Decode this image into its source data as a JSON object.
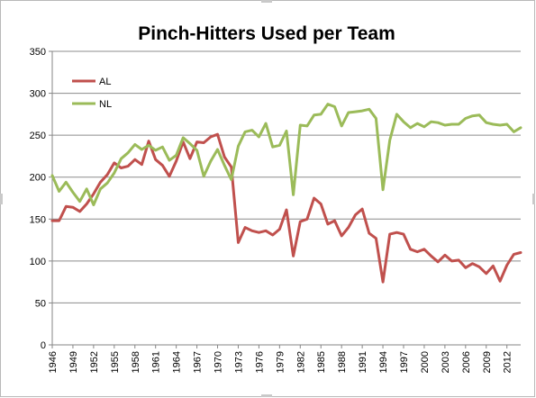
{
  "chart_data": {
    "type": "line",
    "title": "Pinch-Hitters Used per Team",
    "xlabel": "",
    "ylabel": "",
    "ylim": [
      0,
      350
    ],
    "yticks": [
      0,
      50,
      100,
      150,
      200,
      250,
      300,
      350
    ],
    "xlim": [
      1946,
      2014
    ],
    "xtick_labels": [
      "1946",
      "1949",
      "1952",
      "1955",
      "1958",
      "1961",
      "1964",
      "1967",
      "1970",
      "1973",
      "1976",
      "1979",
      "1982",
      "1985",
      "1988",
      "1991",
      "1994",
      "1997",
      "2000",
      "2003",
      "2006",
      "2009",
      "2012"
    ],
    "grid": "horizontal",
    "legend_position": "top-left",
    "series": [
      {
        "name": "AL",
        "color": "#c0504d",
        "x": [
          1946,
          1947,
          1948,
          1949,
          1950,
          1951,
          1952,
          1953,
          1954,
          1955,
          1956,
          1957,
          1958,
          1959,
          1960,
          1961,
          1962,
          1963,
          1964,
          1965,
          1966,
          1967,
          1968,
          1969,
          1970,
          1971,
          1972,
          1973,
          1974,
          1975,
          1976,
          1977,
          1978,
          1979,
          1980,
          1981,
          1982,
          1983,
          1984,
          1985,
          1986,
          1987,
          1988,
          1989,
          1990,
          1991,
          1992,
          1993,
          1994,
          1995,
          1996,
          1997,
          1998,
          1999,
          2000,
          2001,
          2002,
          2003,
          2004,
          2005,
          2006,
          2007,
          2008,
          2009,
          2010,
          2011,
          2012,
          2013,
          2014
        ],
        "values": [
          148,
          148,
          165,
          164,
          159,
          168,
          180,
          194,
          203,
          217,
          211,
          213,
          221,
          215,
          243,
          221,
          214,
          201,
          219,
          242,
          222,
          242,
          241,
          248,
          251,
          224,
          212,
          122,
          140,
          136,
          134,
          136,
          131,
          138,
          161,
          106,
          147,
          150,
          175,
          168,
          144,
          148,
          130,
          140,
          155,
          162,
          133,
          127,
          75,
          132,
          134,
          132,
          114,
          111,
          114,
          106,
          99,
          107,
          100,
          101,
          92,
          97,
          93,
          85,
          94,
          76,
          95,
          108,
          110
        ]
      },
      {
        "name": "NL",
        "color": "#9bbb59",
        "x": [
          1946,
          1947,
          1948,
          1949,
          1950,
          1951,
          1952,
          1953,
          1954,
          1955,
          1956,
          1957,
          1958,
          1959,
          1960,
          1961,
          1962,
          1963,
          1964,
          1965,
          1966,
          1967,
          1968,
          1969,
          1970,
          1971,
          1972,
          1973,
          1974,
          1975,
          1976,
          1977,
          1978,
          1979,
          1980,
          1981,
          1982,
          1983,
          1984,
          1985,
          1986,
          1987,
          1988,
          1989,
          1990,
          1991,
          1992,
          1993,
          1994,
          1995,
          1996,
          1997,
          1998,
          1999,
          2000,
          2001,
          2002,
          2003,
          2004,
          2005,
          2006,
          2007,
          2008,
          2009,
          2010,
          2011,
          2012,
          2013,
          2014
        ],
        "values": [
          202,
          183,
          194,
          182,
          171,
          186,
          167,
          186,
          193,
          205,
          222,
          229,
          239,
          233,
          238,
          232,
          236,
          220,
          226,
          247,
          240,
          232,
          201,
          219,
          233,
          214,
          197,
          237,
          254,
          256,
          248,
          264,
          236,
          238,
          255,
          179,
          262,
          261,
          274,
          275,
          287,
          284,
          261,
          277,
          278,
          279,
          281,
          270,
          185,
          244,
          275,
          266,
          259,
          264,
          260,
          266,
          265,
          262,
          263,
          263,
          270,
          273,
          274,
          265,
          263,
          262,
          263,
          254,
          259
        ]
      }
    ]
  }
}
